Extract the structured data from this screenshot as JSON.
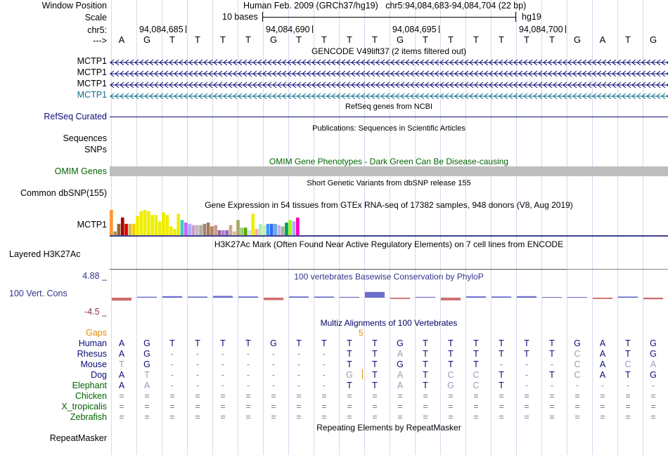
{
  "header": {
    "window_position_label": "Window Position",
    "window_position_value": "Human Feb. 2009 (GRCh37/hg19)   chr5:94,084,683-94,084,704 (22 bp)",
    "scale_label": "Scale",
    "scale_value": "10 bases",
    "scale_assembly": "hg19",
    "chrom_label": "chr5:",
    "strand_label": "--->",
    "positions": [
      "94,084,685",
      "94,084,690",
      "94,084,695",
      "94,084,700"
    ]
  },
  "sequence": [
    "A",
    "G",
    "T",
    "T",
    "T",
    "T",
    "G",
    "T",
    "T",
    "T",
    "T",
    "G",
    "T",
    "T",
    "T",
    "T",
    "T",
    "T",
    "G",
    "A",
    "T",
    "G"
  ],
  "gencode": {
    "title": "GENCODE V49lift37 (2 items filtered out)",
    "tracks": [
      {
        "name": "MCTP1",
        "color": "#0c0c78"
      },
      {
        "name": "MCTP1",
        "color": "#0c0c78"
      },
      {
        "name": "MCTP1",
        "color": "#0c0c78"
      },
      {
        "name": "MCTP1",
        "color": "#0c6e8c"
      }
    ]
  },
  "refseq": {
    "title": "RefSeq genes from NCBI",
    "label": "RefSeq Curated",
    "color": "#0c0c78"
  },
  "publications": {
    "title": "Publications: Sequences in Scientific Articles",
    "label1": "Sequences",
    "label2": "SNPs"
  },
  "omim": {
    "title": "OMIM Gene Phenotypes - Dark Green Can Be Disease-causing",
    "label": "OMIM Genes",
    "color": "#006400"
  },
  "dbsnp": {
    "title": "Short Genetic Variants from dbSNP release 155",
    "label": "Common dbSNP(155)"
  },
  "gtex": {
    "title": "Gene Expression in 54 tissues from GTEx RNA-seq of 17382 samples, 948 donors (V8, Aug 2019)",
    "label": "MCTP1",
    "bars": [
      {
        "v": 1.0,
        "c": "#ff9933"
      },
      {
        "v": 0.15,
        "c": "#999966"
      },
      {
        "v": 0.45,
        "c": "#996633"
      },
      {
        "v": 0.7,
        "c": "#aa0000"
      },
      {
        "v": 0.45,
        "c": "#dd0000"
      },
      {
        "v": 0.45,
        "c": "#ccbb66"
      },
      {
        "v": 0.45,
        "c": "#ffcc00"
      },
      {
        "v": 0.75,
        "c": "#eeee00"
      },
      {
        "v": 0.95,
        "c": "#eeee00"
      },
      {
        "v": 1.0,
        "c": "#eeee00"
      },
      {
        "v": 0.95,
        "c": "#eeee00"
      },
      {
        "v": 0.8,
        "c": "#eeee00"
      },
      {
        "v": 0.8,
        "c": "#eeee00"
      },
      {
        "v": 0.55,
        "c": "#eeee00"
      },
      {
        "v": 0.9,
        "c": "#eeee00"
      },
      {
        "v": 0.8,
        "c": "#eeee00"
      },
      {
        "v": 0.35,
        "c": "#eeee00"
      },
      {
        "v": 0.25,
        "c": "#eeee00"
      },
      {
        "v": 0.85,
        "c": "#eeee00"
      },
      {
        "v": 0.6,
        "c": "#33cccc"
      },
      {
        "v": 0.5,
        "c": "#cc66ff"
      },
      {
        "v": 0.45,
        "c": "#aaaaff"
      },
      {
        "v": 0.4,
        "c": "#cc99cc"
      },
      {
        "v": 0.4,
        "c": "#bbbbbb"
      },
      {
        "v": 0.4,
        "c": "#bbaa99"
      },
      {
        "v": 0.45,
        "c": "#998877"
      },
      {
        "v": 0.5,
        "c": "#aa7755"
      },
      {
        "v": 0.35,
        "c": "#aa8866"
      },
      {
        "v": 0.4,
        "c": "#cc9988"
      },
      {
        "v": 0.2,
        "c": "#996699"
      },
      {
        "v": 0.2,
        "c": "#aa88cc"
      },
      {
        "v": 0.2,
        "c": "#9966cc"
      },
      {
        "v": 0.4,
        "c": "#ccaa88"
      },
      {
        "v": 0.15,
        "c": "#ddbb99"
      },
      {
        "v": 0.6,
        "c": "#aaaa66"
      },
      {
        "v": 0.3,
        "c": "#99cc66"
      },
      {
        "v": 0.3,
        "c": "#55aa00"
      },
      {
        "v": 0.2,
        "c": "#dddddd"
      },
      {
        "v": 0.85,
        "c": "#eeee00"
      },
      {
        "v": 0.25,
        "c": "#ffaaaa"
      },
      {
        "v": 0.45,
        "c": "#aaeebb"
      },
      {
        "v": 0.4,
        "c": "#cceeaa"
      },
      {
        "v": 0.45,
        "c": "#3399ff"
      },
      {
        "v": 0.45,
        "c": "#3366ff"
      },
      {
        "v": 0.45,
        "c": "#66aadd"
      },
      {
        "v": 0.4,
        "c": "#ccaaee"
      },
      {
        "v": 0.35,
        "c": "#99bb88"
      },
      {
        "v": 0.5,
        "c": "#009966"
      },
      {
        "v": 0.6,
        "c": "#99ff00"
      },
      {
        "v": 0.55,
        "c": "#aaaaff"
      },
      {
        "v": 0.7,
        "c": "#ff00bb"
      }
    ]
  },
  "h3k27ac": {
    "title": "H3K27Ac Mark (Often Found Near Active Regulatory Elements) on 7 cell lines from ENCODE",
    "label": "Layered H3K27Ac"
  },
  "phylop": {
    "title": "100 vertebrates Basewise Conservation by PhyloP",
    "label": "100 Vert. Cons",
    "max_label": "4.88 _",
    "min_label": "-4.5 _",
    "scores": [
      -0.4,
      0.05,
      0.15,
      0.08,
      0.2,
      0.1,
      -0.3,
      0.1,
      0.08,
      0.02,
      0.9,
      -0.1,
      0.02,
      -0.35,
      0.12,
      0.1,
      0.15,
      0,
      0,
      -0.1,
      0.08,
      -0.15
    ]
  },
  "multiz": {
    "title": "Multiz Alignments of 100 Vertebrates",
    "gaps_label": "Gaps",
    "gap_marker": "5",
    "species": [
      {
        "name": "Human",
        "seq": "AGTTTTGTTTTGTTTTTTGATG",
        "dim": "",
        "color": "#0c0c78"
      },
      {
        "name": "Rhesus",
        "seq": "AG-------TTATTTTTTCATG",
        "dim": "0000000000010000001000",
        "color": "#0c0c78"
      },
      {
        "name": "Mouse",
        "seq": "TG-------TTGTTT---CACA",
        "dim": "1000000000000000001011",
        "color": "#0c0c78"
      },
      {
        "name": "Dog",
        "seq": "AT-------GTATCCT-TCATG",
        "dim": "0100000001010110001000",
        "color": "#0c0c78"
      },
      {
        "name": "Elephant",
        "seq": "AA-------TTATGCT------",
        "dim": "0100000000010110000000",
        "color": "#006400"
      },
      {
        "name": "Chicken",
        "seq": "======================",
        "dim": "",
        "color": "#006400"
      },
      {
        "name": "X_tropicalis",
        "seq": "======================",
        "dim": "",
        "color": "#006400"
      },
      {
        "name": "Zebrafish",
        "seq": "======================",
        "dim": "",
        "color": "#006400"
      }
    ]
  },
  "repeatmasker": {
    "title": "Repeating Elements by RepeatMasker",
    "label": "RepeatMasker"
  }
}
